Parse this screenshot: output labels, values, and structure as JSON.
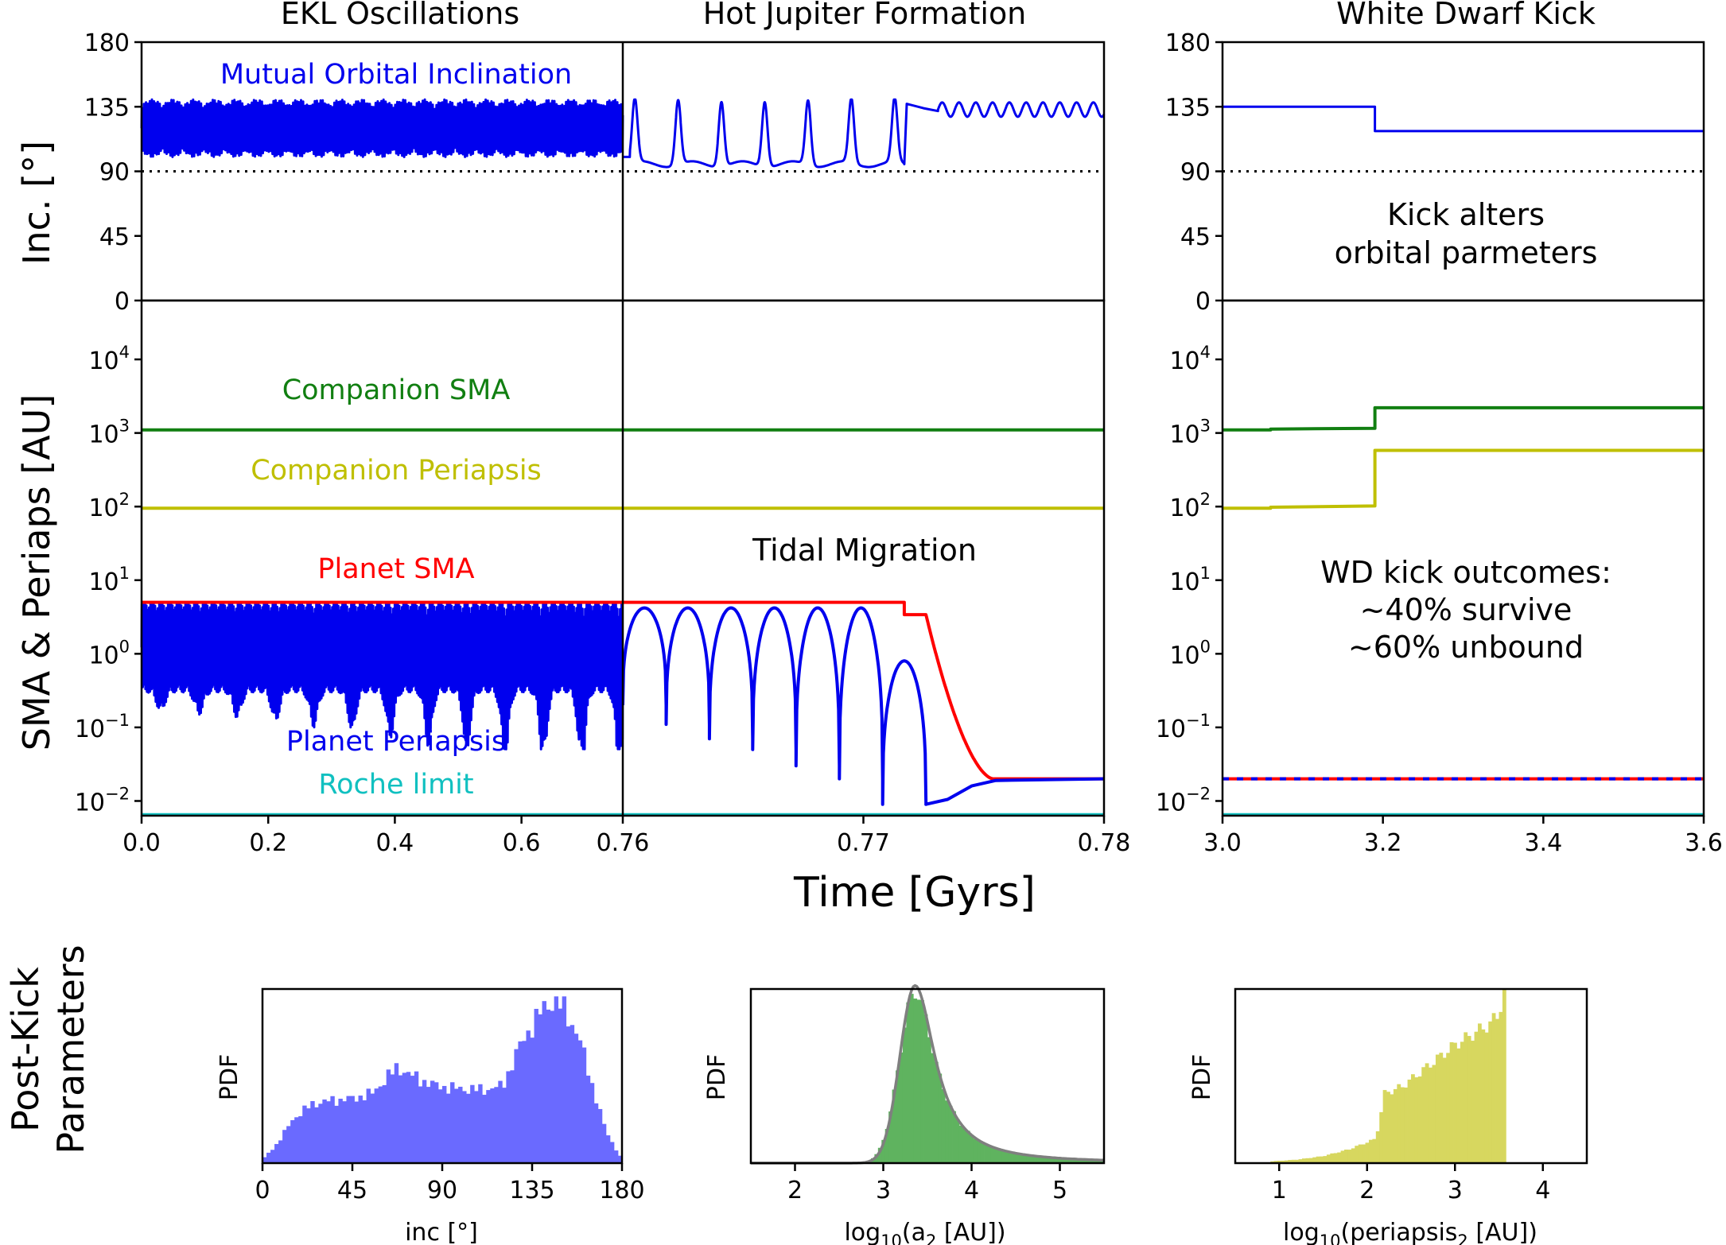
{
  "figure": {
    "panel_titles": [
      "EKL Oscillations",
      "Hot Jupiter Formation",
      "White Dwarf Kick"
    ],
    "time_xlabel": "Time [Gyrs]",
    "inc_ylabel": "Inc. [°]",
    "sma_ylabel": "SMA & Periaps [AU]",
    "postkick_label_line1": "Post-Kick",
    "postkick_label_line2": "Parameters",
    "annotations": {
      "mutual_inc": "Mutual Orbital Inclination",
      "companion_sma": "Companion SMA",
      "companion_peri": "Companion Periapsis",
      "planet_sma": "Planet SMA",
      "planet_peri": "Planet Periapsis",
      "roche": "Roche limit",
      "tidal": "Tidal Migration",
      "kick_line1": "Kick alters",
      "kick_line2": "orbital parmeters",
      "wd_line1": "WD kick outcomes:",
      "wd_line2": "~40% survive",
      "wd_line3": "~60% unbound"
    },
    "colors": {
      "inclination": "#0000ee",
      "companion_sma": "#117f11",
      "companion_peri": "#bfbf00",
      "planet_sma": "#ff0000",
      "planet_peri": "#0000ee",
      "roche": "#10c0c0",
      "hist_inc": "#6a6aff",
      "hist_sma": "#5fb35f",
      "hist_peri": "#d7d75f",
      "fit_line": "#7f7f7f"
    }
  },
  "chart_data": [
    {
      "type": "line",
      "panel": "EKL Oscillations (inclination)",
      "xlim": [
        0.0,
        0.76
      ],
      "ylim": [
        0,
        180
      ],
      "xticks": [
        0.0,
        0.2,
        0.4,
        0.6,
        0.76
      ],
      "yticks": [
        0,
        45,
        90,
        135,
        180
      ],
      "series": [
        {
          "name": "Mutual Orbital Inclination",
          "band_deg": [
            100,
            140
          ],
          "behavior": "rapid oscillation"
        },
        {
          "name": "90 deg reference",
          "value": 90,
          "style": "dotted"
        }
      ]
    },
    {
      "type": "line",
      "panel": "Hot Jupiter Formation (inclination)",
      "xlim": [
        0.76,
        0.78
      ],
      "ylim": [
        0,
        180
      ],
      "spike_times": [
        0.7605,
        0.7623,
        0.7641,
        0.7659,
        0.7677,
        0.7695,
        0.7713
      ],
      "baseline_deg": 95,
      "peak_deg": 140,
      "final_deg": 133
    },
    {
      "type": "line",
      "panel": "White Dwarf Kick (inclination)",
      "xlim": [
        3.0,
        3.6
      ],
      "ylim": [
        0,
        180
      ],
      "xticks": [
        3.0,
        3.2,
        3.4,
        3.6
      ],
      "x": [
        3.0,
        3.19,
        3.19,
        3.6
      ],
      "y": [
        135,
        135,
        118,
        118
      ]
    },
    {
      "type": "line",
      "panel": "SMA & Periapsis (all)",
      "yscale": "log",
      "ylim_exp": [
        -2.2,
        4.8
      ],
      "ytick_exponents": [
        -2,
        -1,
        0,
        1,
        2,
        3,
        4
      ],
      "series": [
        {
          "name": "Companion SMA",
          "pre_kick": 1100,
          "post_kick": 2200
        },
        {
          "name": "Companion Periapsis",
          "pre_kick": 95,
          "post_kick": 580
        },
        {
          "name": "Planet SMA",
          "initial": 5,
          "step_at": 0.7717,
          "step_value": 3.4,
          "final": 0.02
        },
        {
          "name": "Planet Periapsis",
          "band": [
            0.05,
            5
          ],
          "final": 0.02
        },
        {
          "name": "Roche limit",
          "value": 0.0065
        }
      ]
    },
    {
      "type": "bar",
      "panel": "Post-kick inclination histogram",
      "xlabel": "inc [°]",
      "ylabel": "PDF",
      "xlim": [
        0,
        180
      ],
      "xticks": [
        0,
        45,
        90,
        135,
        180
      ],
      "profile_x": [
        0,
        8,
        15,
        25,
        35,
        45,
        55,
        62,
        68,
        75,
        85,
        95,
        110,
        120,
        130,
        140,
        145,
        150,
        158,
        165,
        172,
        180
      ],
      "profile_y": [
        0.02,
        0.12,
        0.25,
        0.34,
        0.36,
        0.37,
        0.4,
        0.49,
        0.55,
        0.5,
        0.45,
        0.43,
        0.42,
        0.44,
        0.7,
        0.88,
        0.93,
        0.9,
        0.74,
        0.45,
        0.18,
        0.02
      ]
    },
    {
      "type": "bar",
      "panel": "Post-kick companion SMA histogram",
      "xlabel": "log10(a2 [AU])",
      "ylabel": "PDF",
      "xlim": [
        1.5,
        5.5
      ],
      "xticks": [
        2,
        3,
        4,
        5
      ],
      "peak_x": 3.36,
      "fit_line": true
    },
    {
      "type": "bar",
      "panel": "Post-kick companion periapsis histogram",
      "xlabel": "log10(periapsis2 [AU])",
      "ylabel": "PDF",
      "xlim": [
        0.5,
        4.5
      ],
      "xticks": [
        1,
        2,
        3,
        4
      ],
      "profile_x": [
        0.9,
        1.2,
        1.5,
        1.8,
        2.1,
        2.2,
        2.4,
        2.6,
        2.8,
        3.0,
        3.2,
        3.4,
        3.5,
        3.56
      ],
      "profile_y": [
        0.01,
        0.02,
        0.04,
        0.08,
        0.14,
        0.4,
        0.44,
        0.52,
        0.6,
        0.68,
        0.74,
        0.8,
        0.86,
        1.0
      ]
    }
  ]
}
